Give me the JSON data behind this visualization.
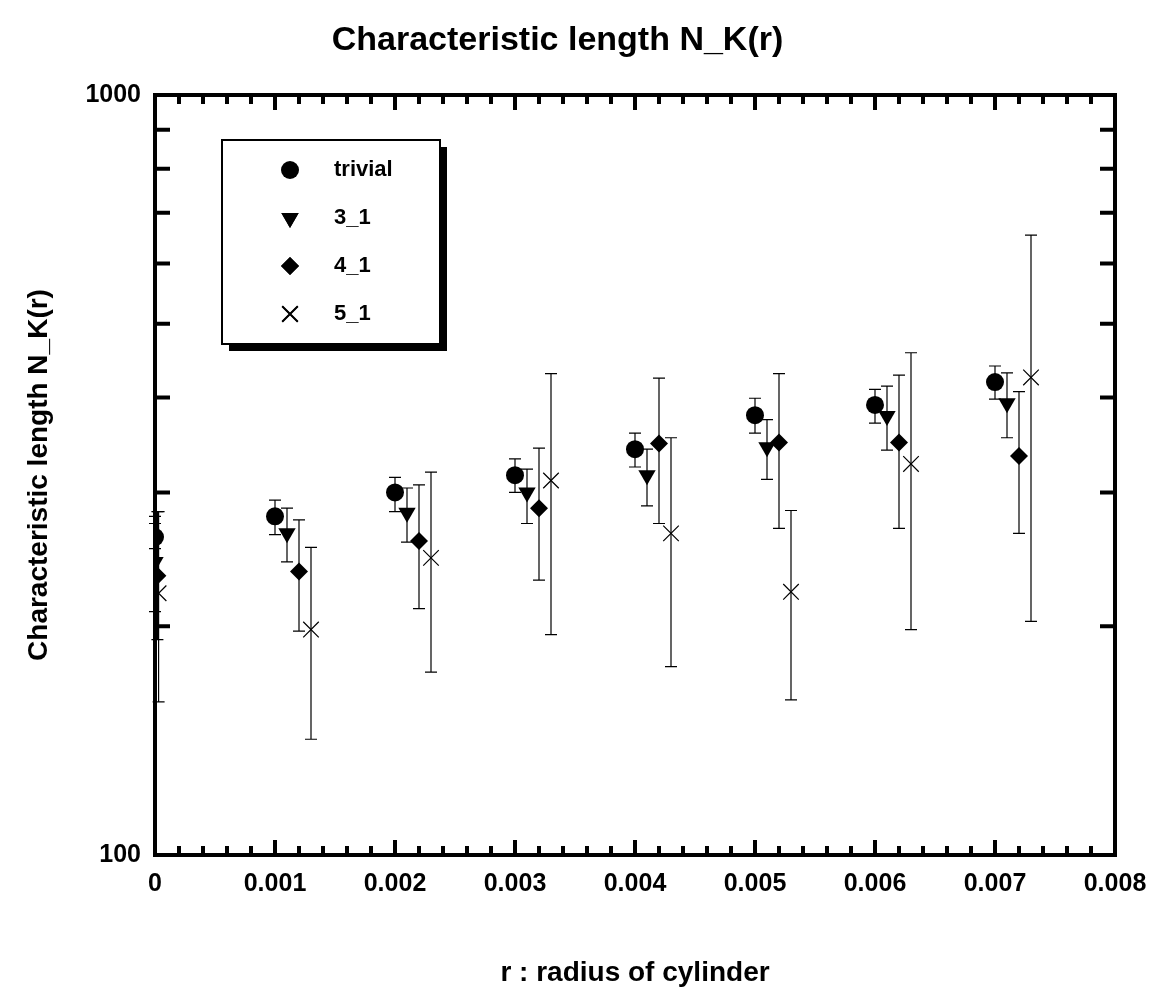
{
  "chart_data": {
    "type": "scatter",
    "title": "Characteristic length N_K(r)",
    "xlabel": "r : radius of cylinder",
    "ylabel": "Characteristic length N_K(r)",
    "log": "y",
    "grid": false,
    "legend": "top left",
    "xlim": [
      0,
      0.008
    ],
    "ylim": [
      100,
      1000
    ],
    "xticks": [
      0,
      {
        "value": 0.0002,
        "label": null
      },
      {
        "value": 0.0004,
        "label": null
      },
      {
        "value": 0.0006,
        "label": null
      },
      {
        "value": 0.0008,
        "label": null
      },
      0.001,
      {
        "value": 0.0012,
        "label": null
      },
      {
        "value": 0.0014,
        "label": null
      },
      {
        "value": 0.0016,
        "label": null
      },
      {
        "value": 0.0018,
        "label": null
      },
      0.002,
      {
        "value": 0.0022,
        "label": null
      },
      {
        "value": 0.0024,
        "label": null
      },
      {
        "value": 0.0026,
        "label": null
      },
      {
        "value": 0.0028,
        "label": null
      },
      0.003,
      {
        "value": 0.0032,
        "label": null
      },
      {
        "value": 0.0034,
        "label": null
      },
      {
        "value": 0.0036,
        "label": null
      },
      {
        "value": 0.0038,
        "label": null
      },
      0.004,
      {
        "value": 0.0042,
        "label": null
      },
      {
        "value": 0.0044,
        "label": null
      },
      {
        "value": 0.0046,
        "label": null
      },
      {
        "value": 0.0048,
        "label": null
      },
      0.005,
      {
        "value": 0.0052,
        "label": null
      },
      {
        "value": 0.0054,
        "label": null
      },
      {
        "value": 0.0056,
        "label": null
      },
      {
        "value": 0.0058,
        "label": null
      },
      0.006,
      {
        "value": 0.0062,
        "label": null
      },
      {
        "value": 0.0064,
        "label": null
      },
      {
        "value": 0.0066,
        "label": null
      },
      {
        "value": 0.0068,
        "label": null
      },
      0.007,
      {
        "value": 0.0072,
        "label": null
      },
      {
        "value": 0.0074,
        "label": null
      },
      {
        "value": 0.0076,
        "label": null
      },
      {
        "value": 0.0078,
        "label": null
      },
      0.008
    ],
    "yticks": [
      100,
      {
        "value": 200,
        "label": null
      },
      {
        "value": 300,
        "label": null
      },
      {
        "value": 400,
        "label": null
      },
      {
        "value": 500,
        "label": null
      },
      {
        "value": 600,
        "label": null
      },
      {
        "value": 700,
        "label": null
      },
      {
        "value": 800,
        "label": null
      },
      {
        "value": 900,
        "label": null
      },
      1000
    ],
    "series": [
      {
        "name": "trivial",
        "color": "#000000",
        "marker": "circle",
        "x": [
          0,
          0.001,
          0.002,
          0.003,
          0.004,
          0.005,
          0.006,
          0.007
        ],
        "values": [
          262,
          279,
          300,
          316,
          342,
          379,
          391,
          419
        ],
        "errors": [
          [
            253,
            273
          ],
          [
            264,
            293
          ],
          [
            283,
            314
          ],
          [
            300,
            332
          ],
          [
            324,
            359
          ],
          [
            359,
            399
          ],
          [
            370,
            410
          ],
          [
            398,
            440
          ]
        ]
      },
      {
        "name": "3_1",
        "color": "#000000",
        "marker": "triangle",
        "x": [
          0,
          0.0011,
          0.0021,
          0.0031,
          0.0041,
          0.0051,
          0.0061,
          0.0071
        ],
        "values": [
          243,
          265,
          282,
          300,
          316,
          344,
          378,
          393
        ],
        "errors": [
          [
            209,
            279
          ],
          [
            243,
            286
          ],
          [
            258,
            304
          ],
          [
            273,
            322
          ],
          [
            288,
            342
          ],
          [
            312,
            374
          ],
          [
            341,
            414
          ],
          [
            354,
            431
          ]
        ]
      },
      {
        "name": "4_1",
        "color": "#000000",
        "marker": "diamond",
        "x": [
          2e-05,
          0.0012,
          0.0022,
          0.0032,
          0.0042,
          0.0052,
          0.0062,
          0.0072
        ],
        "values": [
          233,
          236,
          259,
          286,
          348,
          349,
          349,
          335
        ],
        "errors": [
          [
            192,
            283
          ],
          [
            197,
            276
          ],
          [
            211,
            307
          ],
          [
            230,
            343
          ],
          [
            273,
            424
          ],
          [
            269,
            430
          ],
          [
            269,
            428
          ],
          [
            265,
            407
          ]
        ]
      },
      {
        "name": "5_1",
        "color": "#000000",
        "marker": "cross",
        "x": [
          3e-05,
          0.0013,
          0.0023,
          0.0033,
          0.0043,
          0.0053,
          0.0063,
          0.0073
        ],
        "values": [
          221,
          198,
          246,
          311,
          265,
          222,
          327,
          425
        ],
        "errors": [
          [
            159,
            283
          ],
          [
            142,
            254
          ],
          [
            174,
            319
          ],
          [
            195,
            430
          ],
          [
            177,
            354
          ],
          [
            160,
            284
          ],
          [
            198,
            458
          ],
          [
            203,
            654
          ]
        ]
      }
    ]
  }
}
